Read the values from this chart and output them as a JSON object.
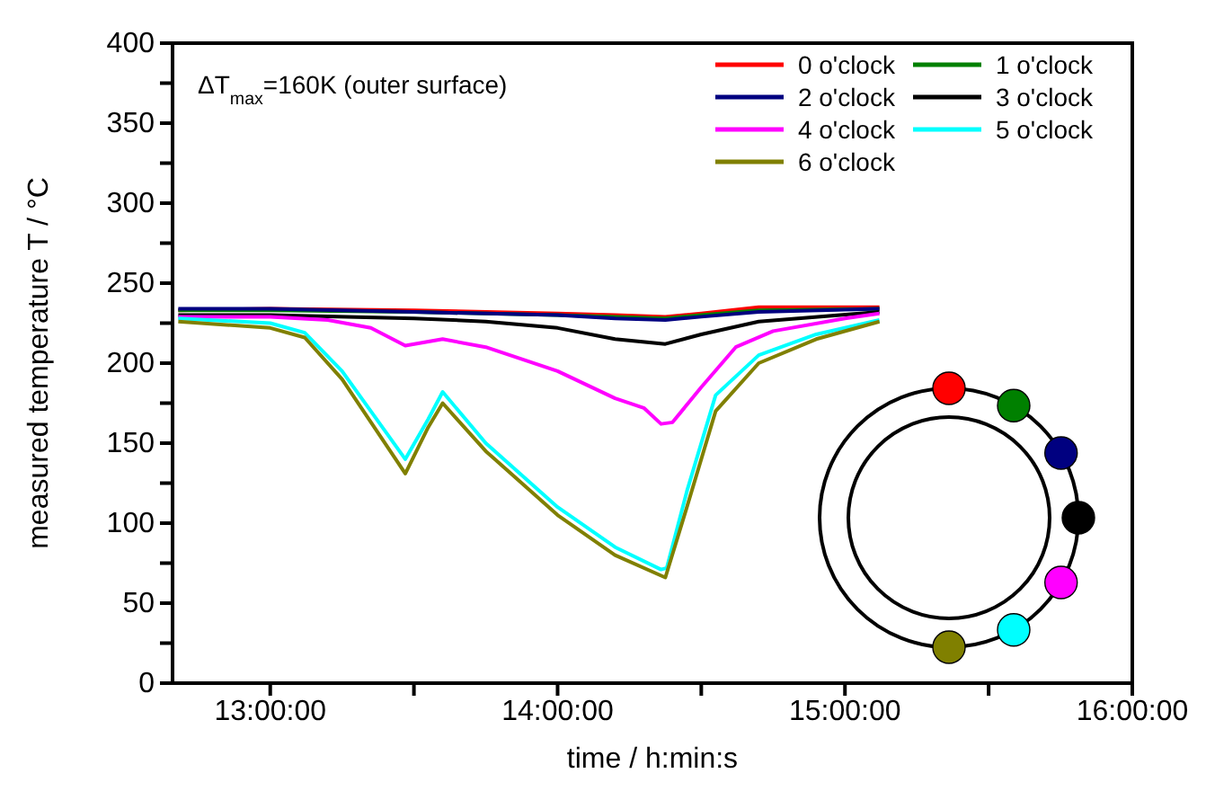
{
  "chart_data": {
    "type": "line",
    "xlabel": "time / h:min:s",
    "ylabel": "measured temperature T / °C",
    "annotations": [
      "ΔT$_{max}$=160K (outer surface)"
    ],
    "xlim": [
      12.66,
      16
    ],
    "xticks": [
      {
        "value": 13,
        "label": "13:00:00"
      },
      {
        "value": 13.5,
        "label": null
      },
      {
        "value": 14,
        "label": "14:00:00"
      },
      {
        "value": 14.5,
        "label": null
      },
      {
        "value": 15,
        "label": "15:00:00"
      },
      {
        "value": 15.5,
        "label": null
      },
      {
        "value": 16,
        "label": "16:00:00"
      }
    ],
    "ylim": [
      0,
      400
    ],
    "yticks": [
      0,
      {
        "value": 25,
        "label": null
      },
      50,
      {
        "value": 75,
        "label": null
      },
      100,
      {
        "value": 125,
        "label": null
      },
      150,
      {
        "value": 175,
        "label": null
      },
      200,
      {
        "value": 225,
        "label": null
      },
      250,
      {
        "value": 275,
        "label": null
      },
      300,
      {
        "value": 325,
        "label": null
      },
      350,
      {
        "value": 375,
        "label": null
      },
      400
    ],
    "legend": "top right",
    "marker": "none",
    "line_style": "solid",
    "series": [
      {
        "name": "0 o'clock",
        "color": "#ff0000",
        "x": [
          12.68,
          13.0,
          13.5,
          14.0,
          14.2,
          14.375,
          14.5,
          14.7,
          15.12
        ],
        "values": [
          233,
          234,
          233,
          231,
          230,
          229,
          231,
          235,
          235
        ]
      },
      {
        "name": "1 o'clock",
        "color": "#008000",
        "x": [
          12.68,
          13.0,
          13.5,
          14.0,
          14.2,
          14.375,
          14.5,
          14.7,
          15.12
        ],
        "values": [
          233,
          233,
          232,
          230,
          229,
          228,
          230,
          233,
          234
        ]
      },
      {
        "name": "2 o'clock",
        "color": "#000080",
        "x": [
          12.68,
          13.0,
          13.5,
          14.0,
          14.2,
          14.375,
          14.5,
          14.7,
          15.12
        ],
        "values": [
          234,
          234,
          232,
          230,
          228,
          227,
          229,
          232,
          234
        ]
      },
      {
        "name": "3 o'clock",
        "color": "#000000",
        "x": [
          12.68,
          13.0,
          13.5,
          13.75,
          14.0,
          14.2,
          14.375,
          14.5,
          14.7,
          15.12
        ],
        "values": [
          230,
          230,
          228,
          226,
          222,
          215,
          212,
          218,
          226,
          232
        ]
      },
      {
        "name": "4 o'clock",
        "color": "#ff00ff",
        "x": [
          12.68,
          13.0,
          13.2,
          13.35,
          13.47,
          13.6,
          13.75,
          14.0,
          14.2,
          14.3,
          14.36,
          14.4,
          14.5,
          14.62,
          14.75,
          15.0,
          15.12
        ],
        "values": [
          229,
          229,
          227,
          222,
          211,
          215,
          210,
          195,
          178,
          172,
          162,
          163,
          185,
          210,
          220,
          228,
          231
        ]
      },
      {
        "name": "5 o'clock",
        "color": "#00ffff",
        "x": [
          12.68,
          13.0,
          13.12,
          13.25,
          13.47,
          13.55,
          13.6,
          13.75,
          14.0,
          14.2,
          14.36,
          14.38,
          14.45,
          14.55,
          14.7,
          14.9,
          15.12
        ],
        "values": [
          228,
          225,
          219,
          195,
          140,
          165,
          182,
          150,
          110,
          85,
          71,
          72,
          120,
          180,
          205,
          218,
          227
        ]
      },
      {
        "name": "6 o'clock",
        "color": "#808000",
        "x": [
          12.68,
          13.0,
          13.12,
          13.25,
          13.47,
          13.55,
          13.6,
          13.75,
          14.0,
          14.2,
          14.375,
          14.45,
          14.55,
          14.7,
          14.9,
          15.12
        ],
        "values": [
          226,
          222,
          216,
          190,
          131,
          160,
          175,
          145,
          105,
          80,
          66,
          110,
          170,
          200,
          215,
          226
        ]
      }
    ]
  }
}
